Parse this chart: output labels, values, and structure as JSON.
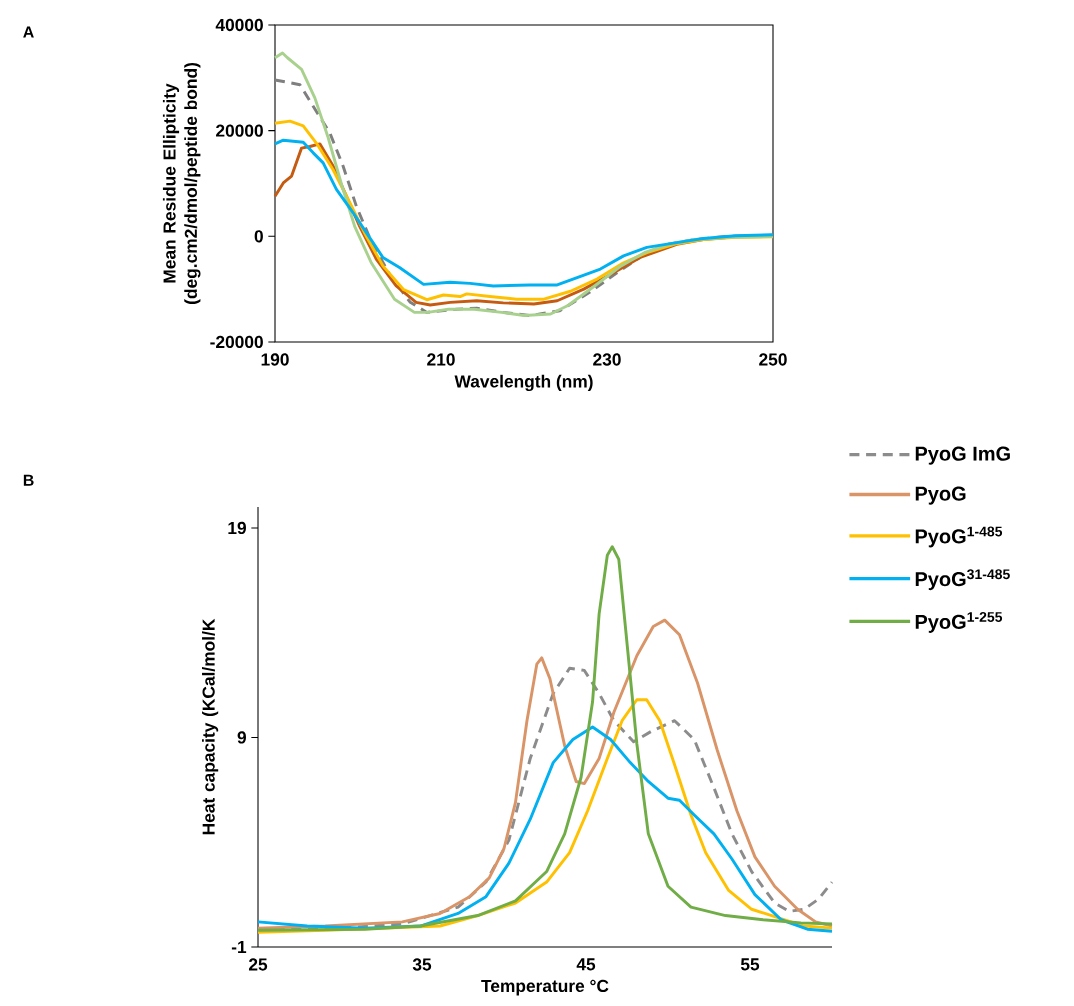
{
  "chart_data": [
    {
      "type": "line",
      "xlabel": "Wavelength (nm)",
      "ylabel": "Mean Residue Ellipticity (deg.cm2/dmol/peptide bond)",
      "annotations": [
        "A"
      ],
      "xlim": [
        190,
        250
      ],
      "xticks": [
        190,
        210,
        230,
        250
      ],
      "ylim": [
        -20000,
        40000
      ],
      "yticks": [
        -20000,
        0,
        20000,
        40000
      ],
      "grid": false,
      "legend": false,
      "series": [
        {
          "color": "#7f7f7f",
          "line_style": "dashed",
          "x": [
            190,
            191,
            193,
            194.6,
            196.6,
            198.2,
            199.8,
            201.5,
            203.9,
            206.3,
            208.3,
            211.9,
            214.3,
            217.5,
            220.7,
            224.3,
            227.9,
            231.2,
            234.8,
            237.4,
            240.6,
            244.6,
            250
          ],
          "values": [
            29600,
            29300,
            28700,
            24600,
            19600,
            13300,
            5700,
            -600,
            -7500,
            -12500,
            -14400,
            -13800,
            -13600,
            -14400,
            -15000,
            -14100,
            -10600,
            -6900,
            -3100,
            -1500,
            -600,
            0,
            200
          ]
        },
        {
          "color": "#c55a11",
          "line_style": "solid",
          "x": [
            190,
            191,
            192,
            193.2,
            194.2,
            195.4,
            197,
            198.6,
            200.2,
            202.2,
            204.6,
            207,
            208.7,
            211.1,
            214.3,
            217.5,
            221.2,
            224,
            227.2,
            230.8,
            234,
            238.4,
            241.6,
            245.5,
            250
          ],
          "values": [
            7600,
            10100,
            11400,
            16700,
            17000,
            17500,
            13300,
            7600,
            1900,
            -4300,
            -9400,
            -12500,
            -13000,
            -12500,
            -12200,
            -12600,
            -12800,
            -12200,
            -10000,
            -6900,
            -4000,
            -1500,
            -600,
            -100,
            0
          ]
        },
        {
          "color": "#ffc000",
          "line_style": "solid",
          "x": [
            190,
            191.8,
            193.4,
            195,
            197,
            199,
            201,
            203,
            205.5,
            208.3,
            210.3,
            212.3,
            213.1,
            215.9,
            219.1,
            222.4,
            225.6,
            228.8,
            232,
            234.8,
            238.4,
            241.6,
            245.5,
            250
          ],
          "values": [
            21400,
            21800,
            20900,
            17600,
            12600,
            6400,
            0,
            -5600,
            -10100,
            -12000,
            -11100,
            -11400,
            -10900,
            -11400,
            -11900,
            -11900,
            -10400,
            -8100,
            -5000,
            -3100,
            -1400,
            -600,
            -200,
            -100
          ]
        },
        {
          "color": "#a9d18e",
          "line_style": "solid",
          "x": [
            190,
            190.9,
            191.5,
            193.2,
            194.8,
            196.4,
            198,
            199.6,
            201.6,
            204.4,
            206.8,
            208.4,
            210.9,
            214,
            217.3,
            220,
            223.2,
            225.3,
            228.5,
            231.7,
            234.5,
            237.4,
            240.6,
            244.6,
            250
          ],
          "values": [
            33800,
            34700,
            33800,
            31600,
            26200,
            18700,
            9900,
            1900,
            -5000,
            -11900,
            -14400,
            -14400,
            -13800,
            -13800,
            -14400,
            -15000,
            -14700,
            -13100,
            -9400,
            -5600,
            -3100,
            -1500,
            -600,
            -200,
            0
          ]
        },
        {
          "color": "#00b0f0",
          "line_style": "solid",
          "x": [
            190,
            191,
            193.4,
            194.6,
            195.8,
            197.4,
            199.4,
            201,
            203,
            205,
            207.9,
            211.1,
            213.5,
            216.3,
            220.7,
            224,
            226.4,
            229.2,
            232,
            234.8,
            238.4,
            241.6,
            245.5,
            250
          ],
          "values": [
            17500,
            18200,
            17800,
            15800,
            13900,
            8900,
            4500,
            700,
            -4000,
            -5900,
            -9100,
            -8700,
            -8900,
            -9400,
            -9200,
            -9200,
            -7800,
            -6200,
            -3700,
            -2100,
            -1200,
            -400,
            100,
            300
          ]
        }
      ]
    },
    {
      "type": "line",
      "xlabel": "Temperature °C",
      "ylabel": "Heat capacity (KCal/mol/K",
      "annotations": [
        "B"
      ],
      "xlim": [
        25,
        60
      ],
      "xticks": [
        25,
        35,
        45,
        55
      ],
      "ylim": [
        -1,
        20
      ],
      "yticks": [
        -1,
        9,
        19
      ],
      "grid": false,
      "legend": "right",
      "series": [
        {
          "name": "PyoG ImG",
          "color": "#8c8c8c",
          "line_style": "dashed",
          "x": [
            25,
            30,
            33.8,
            37.2,
            38.9,
            40.3,
            41.6,
            43,
            44,
            44.9,
            45.8,
            46.7,
            47.9,
            49,
            50.4,
            51.6,
            52.8,
            53.9,
            55.1,
            56.5,
            57.4,
            58.3,
            59.2,
            60
          ],
          "values": [
            -0.2,
            -0.1,
            0.1,
            0.9,
            2.1,
            4.1,
            8.0,
            11.1,
            12.3,
            12.2,
            11.1,
            9.8,
            8.8,
            9.3,
            9.8,
            8.9,
            6.6,
            4.4,
            2.6,
            1.1,
            0.7,
            0.8,
            1.3,
            2.1
          ]
        },
        {
          "name": "PyoG",
          "color": "#d99468",
          "line_style": "solid",
          "x": [
            25,
            29.1,
            33.8,
            36.1,
            37.9,
            39.1,
            40,
            40.7,
            41.4,
            42,
            42.3,
            42.8,
            43.7,
            44.4,
            44.9,
            45.8,
            46.7,
            48.1,
            49.1,
            49.8,
            50.7,
            51.8,
            53,
            54.2,
            55.3,
            56.5,
            57.9,
            59,
            60
          ],
          "values": [
            -0.1,
            0.0,
            0.2,
            0.6,
            1.4,
            2.3,
            3.7,
            5.9,
            9.8,
            12.5,
            12.8,
            11.8,
            8.6,
            6.9,
            6.8,
            8.0,
            10.2,
            12.9,
            14.3,
            14.6,
            13.9,
            11.6,
            8.4,
            5.5,
            3.3,
            1.9,
            0.8,
            0.2,
            0.0
          ]
        },
        {
          "name": "PyoG$^{1-485}$",
          "color": "#ffc000",
          "line_style": "solid",
          "x": [
            25,
            29.1,
            36.1,
            38.4,
            40.7,
            42.6,
            44,
            45.1,
            46.3,
            47.2,
            48.1,
            48.7,
            49.5,
            50.4,
            51.4,
            52.3,
            53.7,
            55.1,
            56.7,
            58.3,
            60
          ],
          "values": [
            -0.3,
            -0.2,
            0.0,
            0.5,
            1.1,
            2.1,
            3.5,
            5.5,
            8.0,
            9.8,
            10.8,
            10.8,
            9.8,
            7.7,
            5.3,
            3.5,
            1.7,
            0.8,
            0.4,
            0.0,
            -0.1
          ]
        },
        {
          "name": "PyoG$^{31-485}$",
          "color": "#00b0f0",
          "line_style": "solid",
          "x": [
            25,
            28,
            31.5,
            34.9,
            37.2,
            38.9,
            40.3,
            41.6,
            43,
            44.2,
            45.4,
            46.5,
            47.7,
            48.8,
            50,
            50.7,
            51.6,
            52.8,
            53.9,
            55.3,
            56.9,
            58.5,
            60
          ],
          "values": [
            0.2,
            0.0,
            -0.1,
            0.0,
            0.6,
            1.4,
            3.0,
            5.1,
            7.8,
            8.9,
            9.5,
            8.9,
            7.8,
            6.9,
            6.1,
            6.0,
            5.3,
            4.4,
            3.2,
            1.5,
            0.3,
            -0.15,
            -0.25
          ]
        },
        {
          "name": "PyoG$^{1-255}$",
          "color": "#70ad47",
          "line_style": "solid",
          "x": [
            25,
            31.5,
            34.9,
            38.4,
            40.7,
            42.6,
            43.7,
            44.7,
            45.4,
            45.8,
            46.3,
            46.6,
            47,
            47.4,
            48.1,
            48.8,
            50,
            51.4,
            53.5,
            55.8,
            58.1,
            60
          ],
          "values": [
            -0.2,
            -0.15,
            0.0,
            0.5,
            1.2,
            2.6,
            4.4,
            7.1,
            10.7,
            14.9,
            17.7,
            18.1,
            17.5,
            14.3,
            8.7,
            4.4,
            1.9,
            0.9,
            0.5,
            0.3,
            0.15,
            0.1
          ]
        }
      ]
    }
  ]
}
